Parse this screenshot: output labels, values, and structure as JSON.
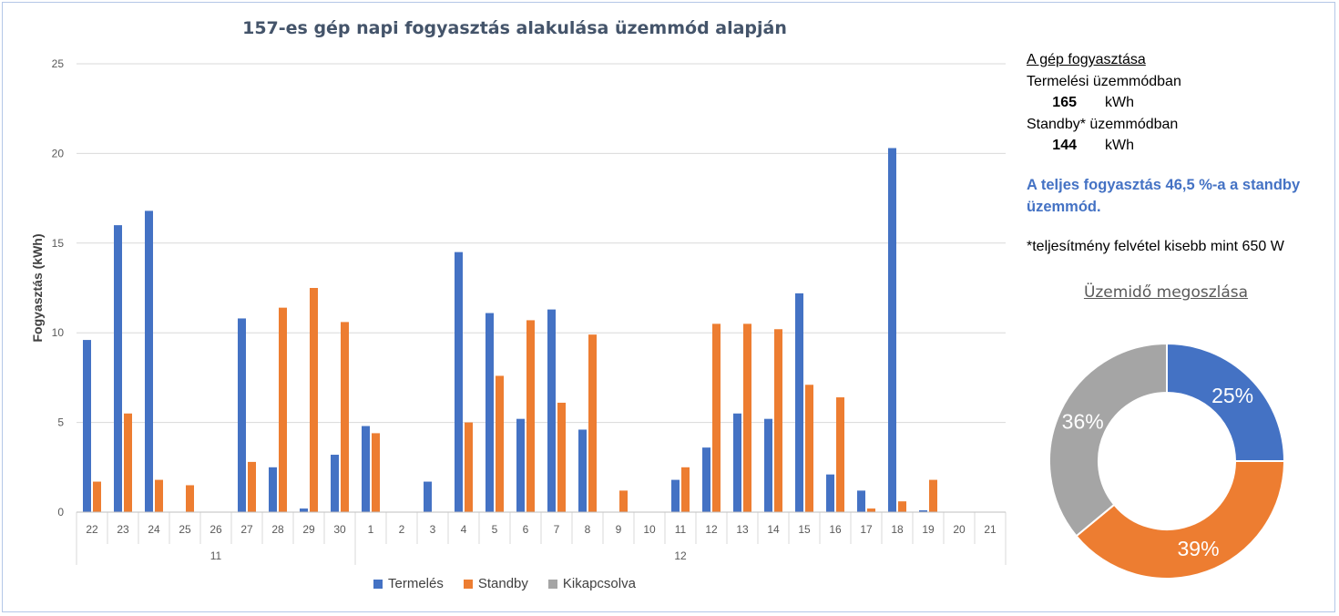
{
  "chart_data": [
    {
      "type": "bar",
      "title": "157-es gép napi fogyasztás alakulása üzemmód alapján",
      "ylabel": "Fogyasztás (kWh)",
      "xlabel": "",
      "ylim": [
        0,
        25
      ],
      "yticks": [
        "0",
        "5",
        "10",
        "15",
        "20",
        "25"
      ],
      "categories": [
        "22",
        "23",
        "24",
        "25",
        "26",
        "27",
        "28",
        "29",
        "30",
        "1",
        "2",
        "3",
        "4",
        "5",
        "6",
        "7",
        "8",
        "9",
        "10",
        "11",
        "12",
        "13",
        "14",
        "15",
        "16",
        "17",
        "18",
        "19",
        "20",
        "21"
      ],
      "groups": [
        {
          "label": "11",
          "count": 9
        },
        {
          "label": "12",
          "count": 21
        }
      ],
      "series": [
        {
          "name": "Termelés",
          "color": "#4472c4",
          "values": [
            9.6,
            16.0,
            16.8,
            0,
            0,
            10.8,
            2.5,
            0.2,
            3.2,
            4.8,
            0,
            1.7,
            14.5,
            11.1,
            5.2,
            11.3,
            4.6,
            0,
            0,
            1.8,
            3.6,
            5.5,
            5.2,
            12.2,
            2.1,
            1.2,
            20.3,
            0.1,
            0,
            0
          ]
        },
        {
          "name": "Standby",
          "color": "#ed7d31",
          "values": [
            1.7,
            5.5,
            1.8,
            1.5,
            0,
            2.8,
            11.4,
            12.5,
            10.6,
            4.4,
            0,
            0,
            5.0,
            7.6,
            10.7,
            6.1,
            9.9,
            1.2,
            0,
            2.5,
            10.5,
            10.5,
            10.2,
            7.1,
            6.4,
            0.2,
            0.6,
            1.8,
            0,
            0
          ]
        },
        {
          "name": "Kikapcsolva",
          "color": "#a5a5a5",
          "values": [
            0,
            0,
            0,
            0,
            0,
            0,
            0,
            0,
            0,
            0,
            0,
            0,
            0,
            0,
            0,
            0,
            0,
            0,
            0,
            0,
            0,
            0,
            0,
            0,
            0,
            0,
            0,
            0,
            0,
            0
          ]
        }
      ],
      "grid": true,
      "legend": "bottom"
    },
    {
      "type": "pie",
      "variant": "donut",
      "title": "Üzemidő megoszlása",
      "slices": [
        {
          "name": "Termelés",
          "value": 25,
          "label": "25%",
          "color": "#4472c4"
        },
        {
          "name": "Standby",
          "value": 39,
          "label": "39%",
          "color": "#ed7d31"
        },
        {
          "name": "Kikapcsolva",
          "value": 36,
          "label": "36%",
          "color": "#a5a5a5"
        }
      ]
    }
  ],
  "info": {
    "heading": "A gép fogyasztása",
    "production_label": "Termelési üzemmódban",
    "production_value": "165",
    "production_unit": "kWh",
    "standby_label": "Standby* üzemmódban",
    "standby_value": "144",
    "standby_unit": "kWh",
    "highlight": "A teljes fogyasztás 46,5 %-a a standby üzemmód.",
    "note": "*teljesítmény felvétel kisebb mint 650 W"
  }
}
